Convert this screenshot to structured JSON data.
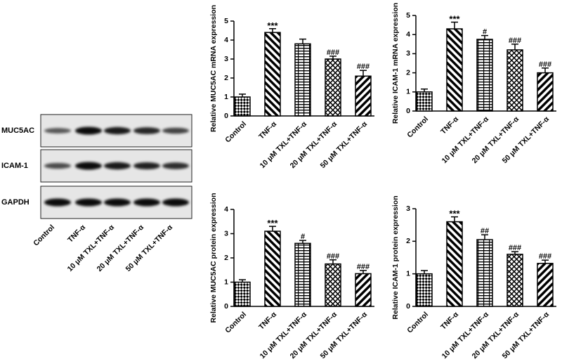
{
  "western_blot": {
    "rows": [
      "MUC5AC",
      "ICAM-1",
      "GAPDH"
    ],
    "lanes": [
      "Control",
      "TNF-α",
      "10 μM TXL+TNF-α",
      "20 μM TXL+TNF-α",
      "50 μM TXL+TNF-α"
    ]
  },
  "chart_data": [
    {
      "type": "bar",
      "y_label": "Relative MUC5AC mRNA expression",
      "categories": [
        "Control",
        "TNF-α",
        "10 μM TXL+TNF-α",
        "20 μM TXL+TNF-α",
        "50 μM TXL+TNF-α"
      ],
      "values": [
        1.0,
        4.4,
        3.8,
        3.0,
        2.1
      ],
      "errors": [
        0.15,
        0.2,
        0.25,
        0.15,
        0.3
      ],
      "annotations": [
        null,
        "***",
        null,
        "###",
        "###"
      ],
      "ylim": [
        0,
        5
      ],
      "yticks": [
        0,
        1,
        2,
        3,
        4,
        5
      ],
      "color": "#000000"
    },
    {
      "type": "bar",
      "y_label": "Relative ICAM-1 mRNA expression",
      "categories": [
        "Control",
        "TNF-α",
        "10 μM TXL+TNF-α",
        "20 μM TXL+TNF-α",
        "50 μM TXL+TNF-α"
      ],
      "values": [
        1.0,
        4.3,
        3.75,
        3.2,
        2.0
      ],
      "errors": [
        0.15,
        0.35,
        0.2,
        0.3,
        0.25
      ],
      "annotations": [
        null,
        "***",
        "#",
        "###",
        "###"
      ],
      "ylim": [
        0,
        5
      ],
      "yticks": [
        0,
        1,
        2,
        3,
        4,
        5
      ],
      "color": "#000000"
    },
    {
      "type": "bar",
      "y_label": "Relative MUC5AC protein expression",
      "categories": [
        "Control",
        "TNF-α",
        "10 μM TXL+TNF-α",
        "20 μM TXL+TNF-α",
        "50 μM TXL+TNF-α"
      ],
      "values": [
        1.0,
        3.1,
        2.6,
        1.75,
        1.35
      ],
      "errors": [
        0.1,
        0.2,
        0.12,
        0.17,
        0.13
      ],
      "annotations": [
        null,
        "***",
        "#",
        "###",
        "###"
      ],
      "ylim": [
        0,
        4
      ],
      "yticks": [
        0,
        1,
        2,
        3,
        4
      ],
      "color": "#000000"
    },
    {
      "type": "bar",
      "y_label": "Relative ICAM-1 protein expression",
      "categories": [
        "Control",
        "TNF-α",
        "10 μM TXL+TNF-α",
        "20 μM TXL+TNF-α",
        "50 μM TXL+TNF-α"
      ],
      "values": [
        1.0,
        2.6,
        2.05,
        1.6,
        1.32
      ],
      "errors": [
        0.1,
        0.15,
        0.15,
        0.08,
        0.1
      ],
      "annotations": [
        null,
        "***",
        "##",
        "###",
        "###"
      ],
      "ylim": [
        0,
        3
      ],
      "yticks": [
        0,
        1,
        2,
        3
      ],
      "color": "#000000"
    }
  ]
}
